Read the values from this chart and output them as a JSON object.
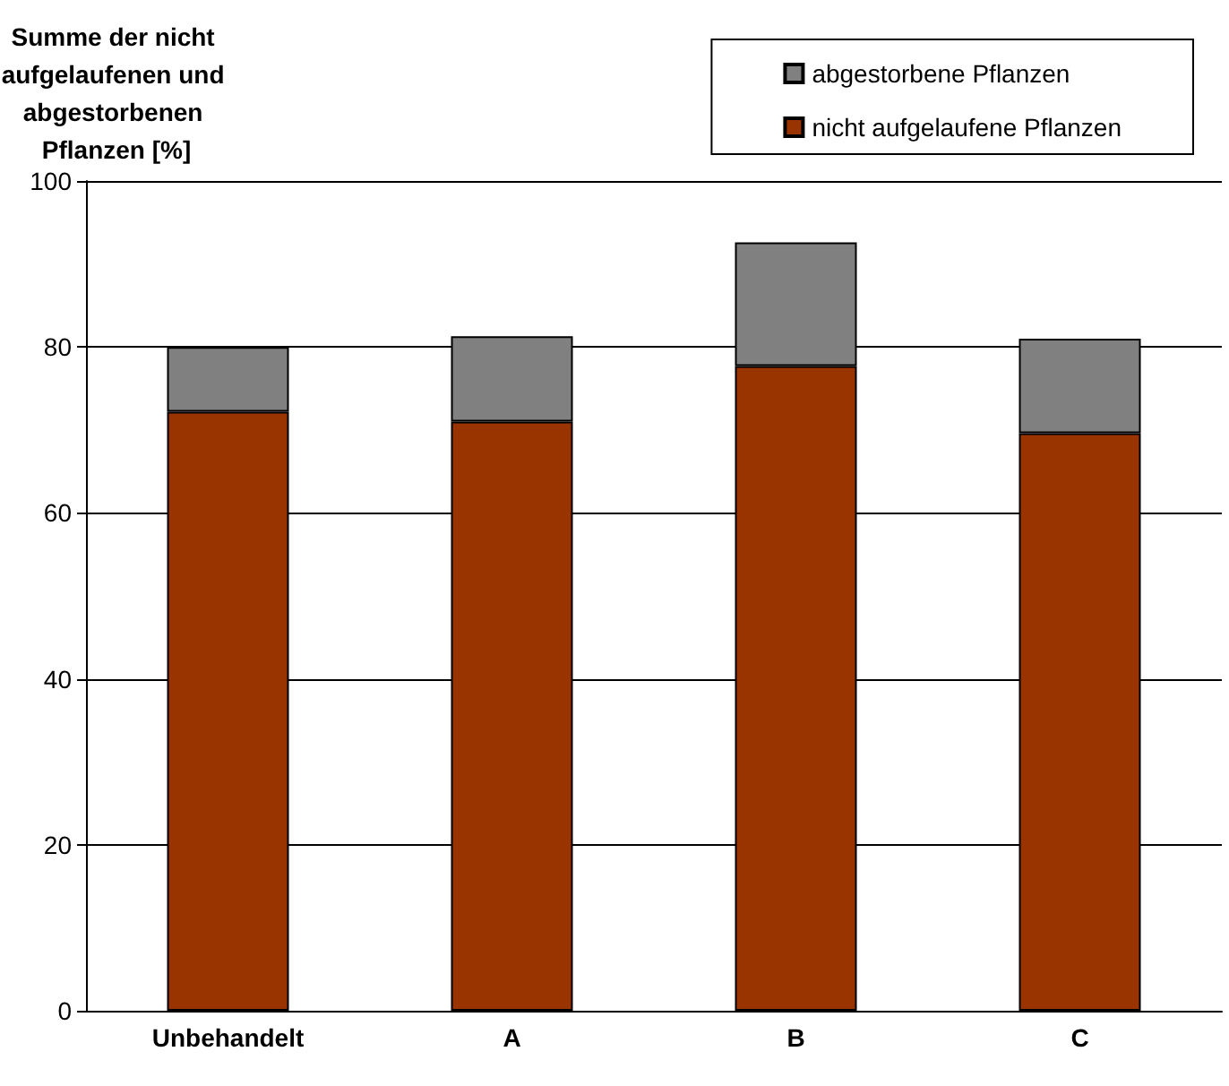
{
  "chart_data": {
    "type": "bar",
    "stacked": true,
    "ylabel": "Summe der nicht aufgelaufenen und abgestorbenen Pflanzen [%]",
    "categories": [
      "Unbehandelt",
      "A",
      "B",
      "C"
    ],
    "series": [
      {
        "name": "nicht aufgelaufene Pflanzen",
        "color": "#993300",
        "values": [
          72.2,
          71.0,
          77.7,
          69.6
        ]
      },
      {
        "name": "abgestorbene Pflanzen",
        "color": "#808080",
        "values": [
          7.8,
          10.3,
          14.9,
          11.4
        ]
      }
    ],
    "ylim": [
      0,
      100
    ],
    "yticks": [
      0,
      20,
      40,
      60,
      80,
      100
    ],
    "grid": "y",
    "legend": "top right"
  }
}
